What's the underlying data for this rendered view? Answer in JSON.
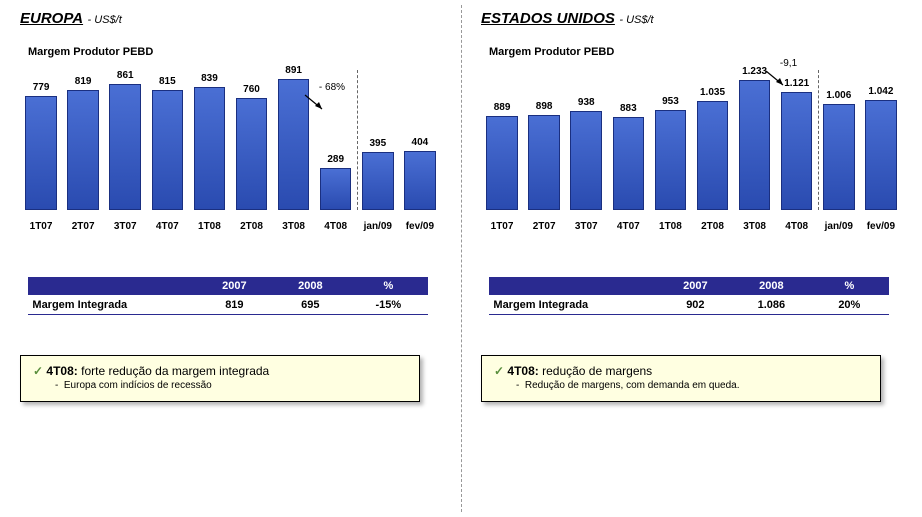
{
  "europe": {
    "title": "EUROPA",
    "unit": "- US$/t",
    "subtitle": "Margem Produtor PEBD",
    "chart": {
      "type": "bar",
      "categories": [
        "1T07",
        "2T07",
        "3T07",
        "4T07",
        "1T08",
        "2T08",
        "3T08",
        "4T08",
        "jan/09",
        "fev/09"
      ],
      "values": [
        779,
        819,
        861,
        815,
        839,
        760,
        891,
        289,
        395,
        404
      ],
      "max": 920,
      "bar_color": "#2a4bb0",
      "dashed_line_after_index": 7,
      "annotation": {
        "text": "- 68%",
        "between": [
          6,
          7
        ]
      }
    },
    "table": {
      "headers": [
        "",
        "2007",
        "2008",
        "%"
      ],
      "cols_width": [
        "42%",
        "19%",
        "19%",
        "20%"
      ],
      "row": {
        "label": "Margem Integrada",
        "y2007": "819",
        "y2008": "695",
        "pct": "-15%"
      }
    },
    "note": {
      "bold": "4T08:",
      "main": "forte redução da margem integrada",
      "sub": "Europa com indícios de recessão"
    }
  },
  "usa": {
    "title": "ESTADOS UNIDOS",
    "unit": "- US$/t",
    "subtitle": "Margem Produtor PEBD",
    "chart": {
      "type": "bar",
      "categories": [
        "1T07",
        "2T07",
        "3T07",
        "4T07",
        "1T08",
        "2T08",
        "3T08",
        "4T08",
        "jan/09",
        "fev/09"
      ],
      "values": [
        889,
        898,
        938,
        883,
        953,
        1035,
        1233,
        1121,
        1006,
        1042
      ],
      "display_values": [
        "889",
        "898",
        "938",
        "883",
        "953",
        "1.035",
        "1.233",
        "1.121",
        "1.006",
        "1.042"
      ],
      "max": 1280,
      "bar_color": "#2a4bb0",
      "dashed_line_after_index": 7,
      "annotation": {
        "text": "-9,1",
        "between": [
          6,
          7
        ]
      }
    },
    "table": {
      "headers": [
        "",
        "2007",
        "2008",
        "%"
      ],
      "cols_width": [
        "42%",
        "19%",
        "19%",
        "20%"
      ],
      "row": {
        "label": "Margem Integrada",
        "y2007": "902",
        "y2008": "1.086",
        "pct": "20%"
      }
    },
    "note": {
      "bold": "4T08:",
      "main": "redução de margens",
      "sub": "Redução de margens, com demanda em queda."
    }
  }
}
